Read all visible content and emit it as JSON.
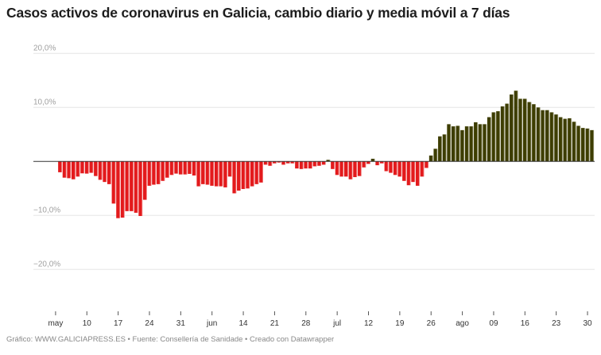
{
  "chart_data": {
    "type": "bar",
    "title": "Casos activos de coronavirus en Galicia, cambio diario y media móvil a 7 días",
    "xlabel": "",
    "ylabel": "",
    "ylim": [
      -27,
      22
    ],
    "grid": true,
    "y_ticks": [
      {
        "value": 20,
        "label": "20,0%"
      },
      {
        "value": 10,
        "label": "10,0%"
      },
      {
        "value": -10,
        "label": "−10,0%"
      },
      {
        "value": -20,
        "label": "−20,0%"
      }
    ],
    "x_ticks": [
      {
        "date": "05-03",
        "label": "may"
      },
      {
        "date": "05-10",
        "label": "10"
      },
      {
        "date": "05-17",
        "label": "17"
      },
      {
        "date": "05-24",
        "label": "24"
      },
      {
        "date": "05-31",
        "label": "31"
      },
      {
        "date": "06-07",
        "label": "jun"
      },
      {
        "date": "06-14",
        "label": "14"
      },
      {
        "date": "06-21",
        "label": "21"
      },
      {
        "date": "06-28",
        "label": "28"
      },
      {
        "date": "07-05",
        "label": "jul"
      },
      {
        "date": "07-12",
        "label": "12"
      },
      {
        "date": "07-19",
        "label": "19"
      },
      {
        "date": "07-26",
        "label": "26"
      },
      {
        "date": "08-02",
        "label": "ago"
      },
      {
        "date": "08-09",
        "label": "09"
      },
      {
        "date": "08-16",
        "label": "16"
      },
      {
        "date": "08-23",
        "label": "23"
      },
      {
        "date": "08-30",
        "label": "30"
      }
    ],
    "colors": {
      "positive": "#3d3d00",
      "negative": "#e31a1c",
      "grid": "#e6e6e6",
      "baseline": "#333333"
    },
    "x": [
      "05-04",
      "05-05",
      "05-06",
      "05-07",
      "05-08",
      "05-09",
      "05-10",
      "05-11",
      "05-12",
      "05-13",
      "05-14",
      "05-15",
      "05-16",
      "05-17",
      "05-18",
      "05-19",
      "05-20",
      "05-21",
      "05-22",
      "05-23",
      "05-24",
      "05-25",
      "05-26",
      "05-27",
      "05-28",
      "05-29",
      "05-30",
      "05-31",
      "06-01",
      "06-02",
      "06-03",
      "06-04",
      "06-05",
      "06-06",
      "06-07",
      "06-08",
      "06-09",
      "06-10",
      "06-11",
      "06-12",
      "06-13",
      "06-14",
      "06-15",
      "06-16",
      "06-17",
      "06-18",
      "06-19",
      "06-20",
      "06-21",
      "06-22",
      "06-23",
      "06-24",
      "06-25",
      "06-26",
      "06-27",
      "06-28",
      "06-29",
      "06-30",
      "07-01",
      "07-02",
      "07-03",
      "07-04",
      "07-05",
      "07-06",
      "07-07",
      "07-08",
      "07-09",
      "07-10",
      "07-11",
      "07-12",
      "07-13",
      "07-14",
      "07-15",
      "07-16",
      "07-17",
      "07-18",
      "07-19",
      "07-20",
      "07-21",
      "07-22",
      "07-23",
      "07-24",
      "07-25",
      "07-26",
      "07-27",
      "07-28",
      "07-29",
      "07-30",
      "07-31",
      "08-01",
      "08-02",
      "08-03",
      "08-04",
      "08-05",
      "08-06",
      "08-07",
      "08-08",
      "08-09",
      "08-10",
      "08-11",
      "08-12",
      "08-13",
      "08-14",
      "08-15",
      "08-16",
      "08-17",
      "08-18",
      "08-19",
      "08-20",
      "08-21",
      "08-22",
      "08-23",
      "08-24",
      "08-25",
      "08-26",
      "08-27",
      "08-28",
      "08-29",
      "08-30",
      "08-31"
    ],
    "values": [
      -2.0,
      -3.0,
      -3.1,
      -3.3,
      -2.8,
      -2.2,
      -2.25,
      -2.1,
      -2.7,
      -3.4,
      -3.8,
      -4.2,
      -7.8,
      -10.5,
      -10.4,
      -9.2,
      -9.2,
      -9.5,
      -10.1,
      -7.1,
      -4.5,
      -4.3,
      -4.2,
      -3.6,
      -3.0,
      -2.5,
      -2.25,
      -2.4,
      -2.4,
      -2.3,
      -2.6,
      -4.6,
      -4.2,
      -4.3,
      -4.5,
      -4.6,
      -4.6,
      -4.8,
      -2.8,
      -5.9,
      -5.4,
      -5.1,
      -5.0,
      -4.6,
      -4.2,
      -3.9,
      -0.6,
      -0.8,
      -0.35,
      -0.2,
      -0.6,
      -0.35,
      -0.35,
      -1.3,
      -1.4,
      -1.3,
      -1.3,
      -0.9,
      -0.8,
      -0.6,
      0.3,
      -1.4,
      -2.5,
      -2.8,
      -2.8,
      -3.3,
      -2.9,
      -2.7,
      -1.1,
      -0.45,
      0.5,
      -0.7,
      -0.35,
      -1.8,
      -2.1,
      -2.5,
      -2.8,
      -3.6,
      -4.4,
      -3.8,
      -4.5,
      -2.8,
      -1.2,
      1.1,
      2.35,
      4.65,
      5.0,
      6.9,
      6.5,
      6.6,
      5.8,
      6.5,
      6.5,
      7.25,
      6.9,
      6.9,
      8.2,
      9.1,
      9.3,
      10.2,
      10.7,
      12.4,
      13.1,
      11.6,
      11.6,
      11.0,
      10.6,
      10.0,
      9.5,
      9.5,
      9.1,
      8.7,
      8.2,
      7.9,
      8.0,
      7.35,
      6.6,
      6.2,
      6.1,
      5.8
    ]
  },
  "footer": "Gráfico: WWW.GALICIAPRESS.ES • Fuente: Consellería de Sanidade • Creado con Datawrapper"
}
